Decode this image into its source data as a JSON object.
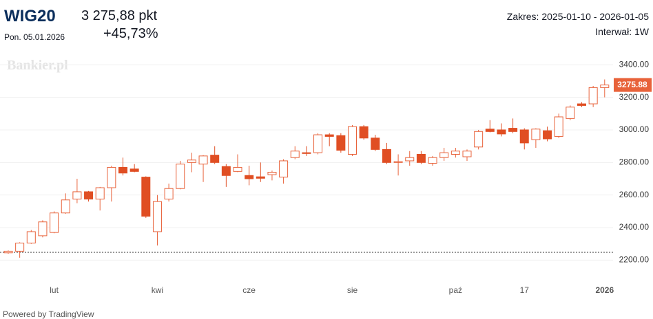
{
  "header": {
    "symbol": "WIG20",
    "date": "Pon. 05.01.2026",
    "price": "3 275,88 pkt",
    "change": "+45,73%",
    "range": "Zakres: 2025-01-10 - 2026-01-05",
    "interval": "Interwał: 1W",
    "watermark": "Bankier.pl",
    "footer": "Powered by TradingView"
  },
  "chart_data": {
    "type": "candlestick",
    "categories": [
      null,
      null,
      null,
      null,
      "lut",
      null,
      null,
      null,
      null,
      null,
      null,
      null,
      null,
      "kwi",
      null,
      null,
      null,
      null,
      null,
      null,
      null,
      "cze",
      null,
      null,
      null,
      null,
      null,
      null,
      null,
      null,
      "sie",
      null,
      null,
      null,
      null,
      null,
      null,
      null,
      null,
      "paź",
      null,
      null,
      null,
      null,
      null,
      "17",
      null,
      null,
      null,
      null,
      null,
      null,
      "2026"
    ],
    "open": [
      2245,
      2255,
      2305,
      2350,
      2370,
      2490,
      2575,
      2620,
      2575,
      2645,
      2770,
      2760,
      2710,
      2375,
      2575,
      2640,
      2800,
      2790,
      2845,
      2775,
      2745,
      2720,
      2712,
      2725,
      2710,
      2830,
      2860,
      2860,
      2970,
      2965,
      2850,
      3020,
      2950,
      2880,
      2800,
      2810,
      2850,
      2795,
      2830,
      2850,
      2835,
      2895,
      3005,
      3000,
      3010,
      3000,
      2940,
      2995,
      2960,
      3070,
      3160,
      3160,
      3260
    ],
    "high": [
      2260,
      2310,
      2385,
      2445,
      2500,
      2610,
      2700,
      2625,
      2650,
      2780,
      2830,
      2790,
      2715,
      2600,
      2670,
      2810,
      2860,
      2845,
      2900,
      2790,
      2850,
      2780,
      2800,
      2750,
      2820,
      2900,
      2900,
      2980,
      2980,
      2980,
      3030,
      3030,
      2970,
      2920,
      2850,
      2870,
      2870,
      2840,
      2890,
      2890,
      2880,
      3000,
      3060,
      3040,
      3070,
      3010,
      3010,
      3020,
      3100,
      3150,
      3170,
      3270,
      3310
    ],
    "low": [
      2240,
      2215,
      2300,
      2340,
      2365,
      2485,
      2550,
      2560,
      2505,
      2560,
      2720,
      2740,
      2460,
      2290,
      2560,
      2635,
      2740,
      2680,
      2790,
      2650,
      2740,
      2660,
      2680,
      2690,
      2670,
      2820,
      2840,
      2850,
      2900,
      2860,
      2840,
      2940,
      2870,
      2790,
      2720,
      2780,
      2790,
      2780,
      2810,
      2830,
      2810,
      2880,
      2985,
      2960,
      2980,
      2880,
      2890,
      2930,
      2950,
      3060,
      3140,
      3140,
      3200
    ],
    "close": [
      2255,
      2305,
      2375,
      2435,
      2490,
      2570,
      2620,
      2575,
      2645,
      2770,
      2735,
      2745,
      2470,
      2560,
      2640,
      2790,
      2815,
      2840,
      2800,
      2720,
      2770,
      2700,
      2703,
      2740,
      2810,
      2870,
      2855,
      2970,
      2960,
      2875,
      3020,
      2950,
      2880,
      2800,
      2805,
      2830,
      2800,
      2830,
      2860,
      2870,
      2870,
      2990,
      2990,
      2975,
      2990,
      2920,
      3005,
      2945,
      3080,
      3140,
      3150,
      3260,
      3275.88
    ],
    "up_color": "#e8623a",
    "down_color": "#e04e23",
    "last_label": "3275.88",
    "reference_line": 2248,
    "ylim": [
      2130,
      3460
    ],
    "yticks": [
      {
        "value": 2200,
        "label": "2200.00"
      },
      {
        "value": 2400,
        "label": "2400.00"
      },
      {
        "value": 2600,
        "label": "2600.00"
      },
      {
        "value": 2800,
        "label": "2800.00"
      },
      {
        "value": 3000,
        "label": "3000.00"
      },
      {
        "value": 3200,
        "label": "3200.00"
      },
      {
        "value": 3400,
        "label": "3400.00"
      }
    ],
    "grid": true
  }
}
